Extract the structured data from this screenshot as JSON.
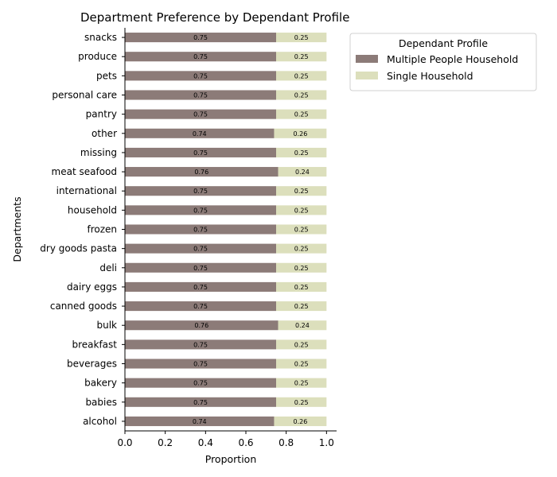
{
  "chart_data": {
    "type": "bar",
    "orientation": "horizontal",
    "stacked": true,
    "title": "Department Preference by Dependant Profile",
    "xlabel": "Proportion",
    "ylabel": "Departments",
    "xlim": [
      0,
      1.05
    ],
    "xticks": [
      "0.0",
      "0.2",
      "0.4",
      "0.6",
      "0.8",
      "1.0"
    ],
    "grid": false,
    "legend_placement": "top-right outside",
    "legend_title": "Dependant Profile",
    "categories": [
      "alcohol",
      "babies",
      "bakery",
      "beverages",
      "breakfast",
      "bulk",
      "canned goods",
      "dairy eggs",
      "deli",
      "dry goods pasta",
      "frozen",
      "household",
      "international",
      "meat seafood",
      "missing",
      "other",
      "pantry",
      "personal care",
      "pets",
      "produce",
      "snacks"
    ],
    "series": [
      {
        "name": "Multiple People Household",
        "color": "#8c7b78",
        "values": [
          0.74,
          0.75,
          0.75,
          0.75,
          0.75,
          0.76,
          0.75,
          0.75,
          0.75,
          0.75,
          0.75,
          0.75,
          0.75,
          0.76,
          0.75,
          0.74,
          0.75,
          0.75,
          0.75,
          0.75,
          0.75
        ],
        "labels": [
          "0.74",
          "0.75",
          "0.75",
          "0.75",
          "0.75",
          "0.76",
          "0.75",
          "0.75",
          "0.75",
          "0.75",
          "0.75",
          "0.75",
          "0.75",
          "0.76",
          "0.75",
          "0.74",
          "0.75",
          "0.75",
          "0.75",
          "0.75",
          "0.75"
        ]
      },
      {
        "name": "Single Household",
        "color": "#dcdfbc",
        "values": [
          0.26,
          0.25,
          0.25,
          0.25,
          0.25,
          0.24,
          0.25,
          0.25,
          0.25,
          0.25,
          0.25,
          0.25,
          0.25,
          0.24,
          0.25,
          0.26,
          0.25,
          0.25,
          0.25,
          0.25,
          0.25
        ],
        "labels": [
          "0.26",
          "0.25",
          "0.25",
          "0.25",
          "0.25",
          "0.24",
          "0.25",
          "0.25",
          "0.25",
          "0.25",
          "0.25",
          "0.25",
          "0.25",
          "0.24",
          "0.25",
          "0.26",
          "0.25",
          "0.25",
          "0.25",
          "0.25",
          "0.25"
        ]
      }
    ]
  }
}
